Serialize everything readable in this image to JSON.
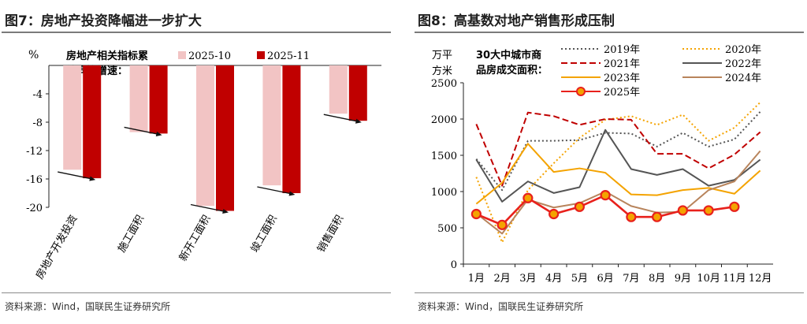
{
  "left": {
    "title": "图7：房地产投资降幅进一步扩大",
    "source": "资料来源：Wind，国联民生证券研究所",
    "chart_data": {
      "type": "bar",
      "unit_label": "%",
      "note_lines": [
        "房地产相关指标累",
        "计同比增速："
      ],
      "categories": [
        "房地产开发投资",
        "施工面积",
        "新开工面积",
        "竣工面积",
        "销售面积"
      ],
      "series": [
        {
          "name": "2025-10",
          "color": "#f2c4c4",
          "values": [
            -14.7,
            -9.4,
            -19.8,
            -16.9,
            -6.8
          ]
        },
        {
          "name": "2025-11",
          "color": "#c00000",
          "values": [
            -15.9,
            -9.6,
            -20.5,
            -18.0,
            -7.8
          ]
        }
      ],
      "yticks": [
        -4,
        -8,
        -12,
        -16,
        -20
      ],
      "ylim": [
        0,
        -20
      ]
    }
  },
  "right": {
    "title": "图8：高基数对地产销售形成压制",
    "source": "资料来源：Wind，国联民生证券研究所",
    "chart_data": {
      "type": "line",
      "ylabel_lines": [
        "万平",
        "方米"
      ],
      "note_lines": [
        "30大中城市商",
        "品房成交面积："
      ],
      "categories": [
        "1月",
        "2月",
        "3月",
        "4月",
        "5月",
        "6月",
        "7月",
        "8月",
        "9月",
        "10月",
        "11月",
        "12月"
      ],
      "yticks": [
        0,
        500,
        1000,
        1500,
        2000,
        2500
      ],
      "ylim": [
        0,
        2500
      ],
      "series": [
        {
          "name": "2019年",
          "color": "#555555",
          "style": "dot",
          "values": [
            1450,
            1020,
            1700,
            1700,
            1710,
            1810,
            1800,
            1620,
            1810,
            1620,
            1720,
            2100
          ]
        },
        {
          "name": "2020年",
          "color": "#f4a300",
          "style": "dot",
          "values": [
            1200,
            300,
            1020,
            1390,
            1740,
            1990,
            2040,
            1920,
            2060,
            1700,
            1880,
            2230
          ]
        },
        {
          "name": "2021年",
          "color": "#c00000",
          "style": "dash",
          "values": [
            1930,
            1080,
            2090,
            2040,
            1920,
            2000,
            1990,
            1520,
            1520,
            1320,
            1510,
            1820
          ]
        },
        {
          "name": "2022年",
          "color": "#555555",
          "style": "solid",
          "values": [
            1440,
            860,
            1140,
            980,
            1060,
            1850,
            1310,
            1230,
            1310,
            1080,
            1160,
            1440
          ]
        },
        {
          "name": "2023年",
          "color": "#f4a300",
          "style": "solid",
          "values": [
            830,
            1120,
            1660,
            1270,
            1320,
            1260,
            960,
            950,
            1020,
            1050,
            970,
            1290
          ]
        },
        {
          "name": "2024年",
          "color": "#b8845c",
          "style": "solid",
          "values": [
            700,
            420,
            890,
            780,
            840,
            1000,
            800,
            710,
            720,
            1020,
            1140,
            1560
          ]
        },
        {
          "name": "2025年",
          "color": "#e8211c",
          "style": "marker",
          "values": [
            690,
            540,
            910,
            690,
            790,
            950,
            650,
            650,
            740,
            740,
            790,
            null
          ]
        }
      ]
    }
  }
}
